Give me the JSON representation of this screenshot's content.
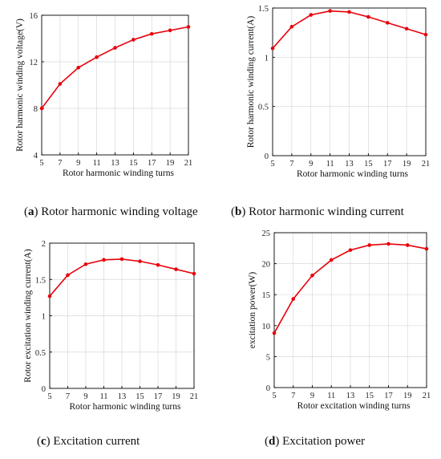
{
  "captions": [
    {
      "letter": "a",
      "text": " Rotor harmonic winding voltage"
    },
    {
      "letter": "b",
      "text": " Rotor harmonic winding current"
    },
    {
      "letter": "c",
      "text": " Excitation current"
    },
    {
      "letter": "d",
      "text": " Excitation power"
    }
  ],
  "colors": {
    "series": "#e8000b",
    "grid": "#d8d8d8"
  },
  "chart_data": [
    {
      "type": "line",
      "xlabel": "Rotor harmonic winding turns",
      "ylabel": "Rotor harmonic winding voltage(V)",
      "x": [
        5,
        7,
        9,
        11,
        13,
        15,
        17,
        19,
        21
      ],
      "values": [
        8.0,
        10.1,
        11.5,
        12.4,
        13.2,
        13.9,
        14.4,
        14.7,
        15.0
      ],
      "xticks": [
        "5",
        "7",
        "9",
        "11",
        "13",
        "15",
        "17",
        "19",
        "21"
      ],
      "yticks": [
        "4",
        "8",
        "12",
        "16"
      ],
      "xlim": [
        5,
        21
      ],
      "ylim": [
        4,
        16
      ],
      "ytick_values": [
        4,
        8,
        12,
        16
      ],
      "grid": true
    },
    {
      "type": "line",
      "xlabel": "Rotor harmonic winding turns",
      "ylabel": "Rotor harmonic winding current(A)",
      "x": [
        5,
        7,
        9,
        11,
        13,
        15,
        17,
        19,
        21
      ],
      "values": [
        1.09,
        1.31,
        1.43,
        1.47,
        1.46,
        1.41,
        1.35,
        1.29,
        1.23
      ],
      "xticks": [
        "5",
        "7",
        "9",
        "11",
        "13",
        "15",
        "17",
        "19",
        "21"
      ],
      "yticks": [
        "0",
        "0.5",
        "1",
        "1.5"
      ],
      "xlim": [
        5,
        21
      ],
      "ylim": [
        0,
        1.5
      ],
      "ytick_values": [
        0,
        0.5,
        1,
        1.5
      ],
      "grid": true
    },
    {
      "type": "line",
      "xlabel": "Rotor harmonic winding turns",
      "ylabel": "Rotor excitation winding current(A)",
      "x": [
        5,
        7,
        9,
        11,
        13,
        15,
        17,
        19,
        21
      ],
      "values": [
        1.27,
        1.56,
        1.71,
        1.77,
        1.78,
        1.75,
        1.7,
        1.64,
        1.58
      ],
      "xticks": [
        "5",
        "7",
        "9",
        "11",
        "13",
        "15",
        "17",
        "19",
        "21"
      ],
      "yticks": [
        "0",
        "0.5",
        "1",
        "1.5",
        "2"
      ],
      "xlim": [
        5,
        21
      ],
      "ylim": [
        0,
        2
      ],
      "ytick_values": [
        0,
        0.5,
        1,
        1.5,
        2
      ],
      "grid": true
    },
    {
      "type": "line",
      "xlabel": "Rotor excitation winding turns",
      "ylabel": "excitation power(W)",
      "x": [
        5,
        7,
        9,
        11,
        13,
        15,
        17,
        19,
        21
      ],
      "values": [
        8.8,
        14.3,
        18.1,
        20.6,
        22.2,
        23.0,
        23.2,
        23.0,
        22.4
      ],
      "xticks": [
        "5",
        "7",
        "9",
        "11",
        "13",
        "15",
        "17",
        "19",
        "21"
      ],
      "yticks": [
        "0",
        "5",
        "10",
        "15",
        "20",
        "25"
      ],
      "xlim": [
        5,
        21
      ],
      "ylim": [
        0,
        25
      ],
      "ytick_values": [
        0,
        5,
        10,
        15,
        20,
        25
      ],
      "grid": true
    }
  ]
}
